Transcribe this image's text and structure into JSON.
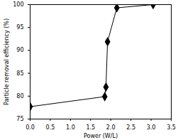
{
  "chart_data": {
    "type": "line",
    "x_label": "Power (W/L)",
    "y_label": "Particle removal efficiency (%)",
    "x": [
      0,
      1.85,
      1.88,
      1.92,
      2.15,
      3.05
    ],
    "values": [
      77.7,
      79.9,
      82.0,
      91.9,
      99.3,
      100.0
    ],
    "color": "#000000",
    "marker": "diamond",
    "line_style": "solid",
    "xlim": [
      0,
      3.5
    ],
    "xticks": [
      0,
      0.5,
      1,
      1.5,
      2,
      2.5,
      3,
      3.5
    ],
    "ylim": [
      75,
      100
    ],
    "yticks": [
      75,
      80,
      85,
      90,
      95,
      100
    ],
    "grid": false
  }
}
